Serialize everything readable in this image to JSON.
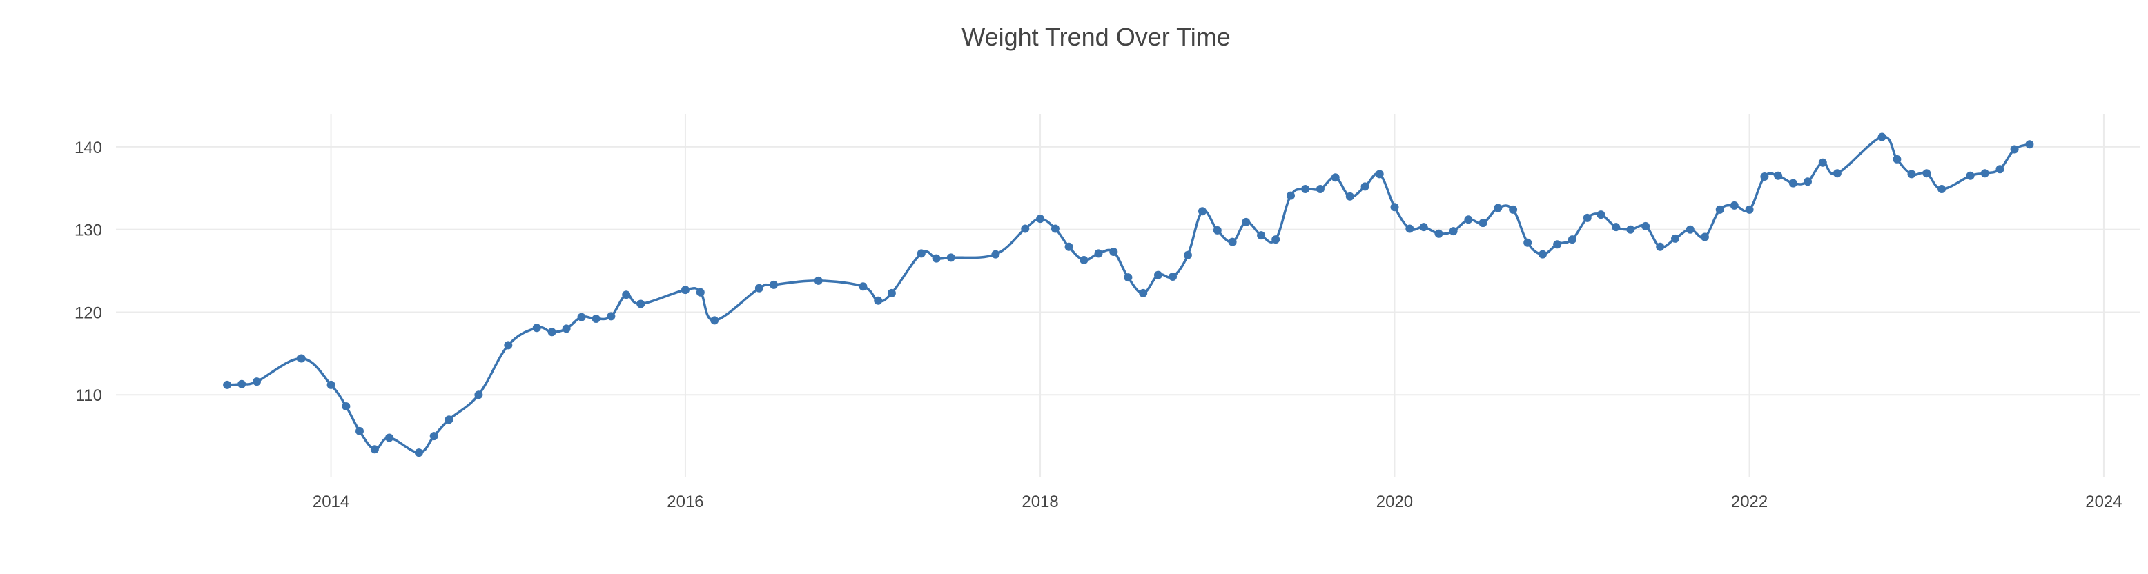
{
  "colors": {
    "series": "#3b74b0",
    "grid": "#ebebeb",
    "text": "#444444",
    "background": "#ffffff"
  },
  "modebar": {
    "icons": [
      "camera-icon",
      "zoom-icon",
      "pan-icon",
      "box-select-icon",
      "lasso-icon",
      "zoom-in-icon",
      "zoom-out-icon",
      "autoscale-icon",
      "reset-axes-icon",
      "spike-lines-icon",
      "hover-icon"
    ]
  },
  "chart_data": {
    "type": "line",
    "title": "Weight Trend Over Time",
    "xlabel": "",
    "ylabel": "",
    "x_ticks": [
      "2014",
      "2016",
      "2018",
      "2020",
      "2022",
      "2024"
    ],
    "y_ticks": [
      "110",
      "120",
      "130",
      "140"
    ],
    "xlim": [
      "2012-10-15",
      "2024-03-15"
    ],
    "ylim": [
      100.0,
      144.0
    ],
    "grid": true,
    "legend": false,
    "markers": true,
    "line_shape": "spline",
    "series": [
      {
        "points": [
          [
            "2013-06-01",
            111.2
          ],
          [
            "2013-07-01",
            111.3
          ],
          [
            "2013-08-01",
            111.6
          ],
          [
            "2013-11-01",
            114.4
          ],
          [
            "2014-01-01",
            111.2
          ],
          [
            "2014-02-01",
            108.6
          ],
          [
            "2014-03-01",
            105.6
          ],
          [
            "2014-04-01",
            103.4
          ],
          [
            "2014-05-01",
            104.8
          ],
          [
            "2014-07-01",
            103.0
          ],
          [
            "2014-08-01",
            105.0
          ],
          [
            "2014-09-01",
            107.0
          ],
          [
            "2014-11-01",
            110.0
          ],
          [
            "2015-01-01",
            116.0
          ],
          [
            "2015-03-01",
            118.1
          ],
          [
            "2015-04-01",
            117.6
          ],
          [
            "2015-05-01",
            118.0
          ],
          [
            "2015-06-01",
            119.4
          ],
          [
            "2015-07-01",
            119.2
          ],
          [
            "2015-08-01",
            119.5
          ],
          [
            "2015-09-01",
            122.1
          ],
          [
            "2015-10-01",
            121.0
          ],
          [
            "2016-01-01",
            122.7
          ],
          [
            "2016-02-01",
            122.4
          ],
          [
            "2016-03-01",
            119.0
          ],
          [
            "2016-06-01",
            122.9
          ],
          [
            "2016-07-01",
            123.3
          ],
          [
            "2016-10-01",
            123.8
          ],
          [
            "2017-01-01",
            123.1
          ],
          [
            "2017-02-01",
            121.4
          ],
          [
            "2017-03-01",
            122.3
          ],
          [
            "2017-05-01",
            127.1
          ],
          [
            "2017-06-01",
            126.5
          ],
          [
            "2017-07-01",
            126.6
          ],
          [
            "2017-10-01",
            127.0
          ],
          [
            "2017-12-01",
            130.1
          ],
          [
            "2018-01-01",
            131.3
          ],
          [
            "2018-02-01",
            130.1
          ],
          [
            "2018-03-01",
            127.9
          ],
          [
            "2018-04-01",
            126.3
          ],
          [
            "2018-05-01",
            127.1
          ],
          [
            "2018-06-01",
            127.3
          ],
          [
            "2018-07-01",
            124.2
          ],
          [
            "2018-08-01",
            122.3
          ],
          [
            "2018-09-01",
            124.5
          ],
          [
            "2018-10-01",
            124.3
          ],
          [
            "2018-11-01",
            126.9
          ],
          [
            "2018-12-01",
            132.2
          ],
          [
            "2019-01-01",
            129.9
          ],
          [
            "2019-02-01",
            128.5
          ],
          [
            "2019-03-01",
            130.9
          ],
          [
            "2019-04-01",
            129.3
          ],
          [
            "2019-05-01",
            128.8
          ],
          [
            "2019-06-01",
            134.1
          ],
          [
            "2019-07-01",
            134.9
          ],
          [
            "2019-08-01",
            134.9
          ],
          [
            "2019-09-01",
            136.3
          ],
          [
            "2019-10-01",
            134.0
          ],
          [
            "2019-11-01",
            135.2
          ],
          [
            "2019-12-01",
            136.7
          ],
          [
            "2020-01-01",
            132.7
          ],
          [
            "2020-02-01",
            130.1
          ],
          [
            "2020-03-01",
            130.3
          ],
          [
            "2020-04-01",
            129.5
          ],
          [
            "2020-05-01",
            129.8
          ],
          [
            "2020-06-01",
            131.2
          ],
          [
            "2020-07-01",
            130.8
          ],
          [
            "2020-08-01",
            132.6
          ],
          [
            "2020-09-01",
            132.4
          ],
          [
            "2020-10-01",
            128.4
          ],
          [
            "2020-11-01",
            127.0
          ],
          [
            "2020-12-01",
            128.2
          ],
          [
            "2021-01-01",
            128.8
          ],
          [
            "2021-02-01",
            131.4
          ],
          [
            "2021-03-01",
            131.8
          ],
          [
            "2021-04-01",
            130.3
          ],
          [
            "2021-05-01",
            130.0
          ],
          [
            "2021-06-01",
            130.4
          ],
          [
            "2021-07-01",
            127.9
          ],
          [
            "2021-08-01",
            128.9
          ],
          [
            "2021-09-01",
            130.0
          ],
          [
            "2021-10-01",
            129.1
          ],
          [
            "2021-11-01",
            132.4
          ],
          [
            "2021-12-01",
            132.9
          ],
          [
            "2022-01-01",
            132.4
          ],
          [
            "2022-02-01",
            136.4
          ],
          [
            "2022-03-01",
            136.5
          ],
          [
            "2022-04-01",
            135.6
          ],
          [
            "2022-05-01",
            135.8
          ],
          [
            "2022-06-01",
            138.1
          ],
          [
            "2022-07-01",
            136.8
          ],
          [
            "2022-10-01",
            141.2
          ],
          [
            "2022-11-01",
            138.5
          ],
          [
            "2022-12-01",
            136.7
          ],
          [
            "2023-01-01",
            136.8
          ],
          [
            "2023-02-01",
            134.9
          ],
          [
            "2023-04-01",
            136.5
          ],
          [
            "2023-05-01",
            136.8
          ],
          [
            "2023-06-01",
            137.3
          ],
          [
            "2023-07-01",
            139.7
          ],
          [
            "2023-08-01",
            140.3
          ]
        ]
      }
    ]
  }
}
